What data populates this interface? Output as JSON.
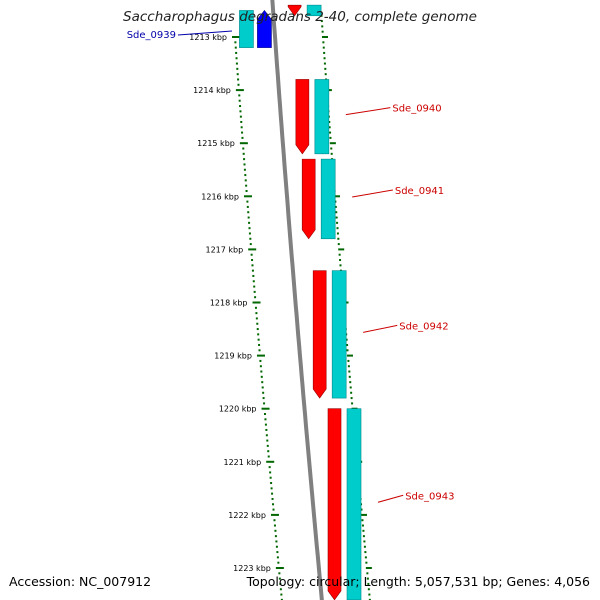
{
  "title": "Saccharophagus degradans 2-40, complete genome",
  "footer": {
    "accession": "Accession: NC_007912",
    "summary": "Topology: circular; Length: 5,057,531 bp; Genes: 4,056"
  },
  "colors": {
    "forward_gene": "#ff0000",
    "reverse_gene": "#0000ff",
    "cds": "#00cccc",
    "ruler": "#006600",
    "backbone": "#808080",
    "label_forward": "#cc0000",
    "label_reverse": "#0000aa"
  },
  "ruler": {
    "ticks": [
      "1213 kbp",
      "1214 kbp",
      "1215 kbp",
      "1216 kbp",
      "1217 kbp",
      "1218 kbp",
      "1219 kbp",
      "1220 kbp",
      "1221 kbp",
      "1222 kbp",
      "1223 kbp"
    ]
  },
  "genes": [
    {
      "label": "Sde_0939",
      "strand": "reverse",
      "start_kbp": 1212.5,
      "end_kbp": 1213.2
    },
    {
      "label": "Sde_0940",
      "strand": "forward",
      "start_kbp": 1213.8,
      "end_kbp": 1215.2
    },
    {
      "label": "Sde_0941",
      "strand": "forward",
      "start_kbp": 1215.3,
      "end_kbp": 1216.8
    },
    {
      "label": "Sde_0942",
      "strand": "forward",
      "start_kbp": 1217.4,
      "end_kbp": 1219.8
    },
    {
      "label": "Sde_0943",
      "strand": "forward",
      "start_kbp": 1220.0,
      "end_kbp": 1223.6
    }
  ],
  "extra_features": [
    {
      "strand": "forward",
      "start_kbp": 1212.4,
      "end_kbp": 1212.6
    }
  ]
}
